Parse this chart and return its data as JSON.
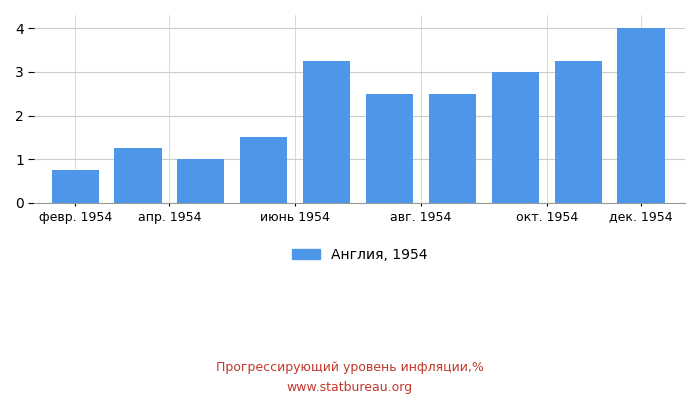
{
  "all_bars": [
    {
      "x": 1,
      "height": 0.75
    },
    {
      "x": 2,
      "height": 1.25
    },
    {
      "x": 3,
      "height": 1.0
    },
    {
      "x": 4,
      "height": 1.5
    },
    {
      "x": 5,
      "height": 3.25
    },
    {
      "x": 6,
      "height": 2.5
    },
    {
      "x": 7,
      "height": 2.5
    },
    {
      "x": 8,
      "height": 3.0
    },
    {
      "x": 9,
      "height": 3.25
    },
    {
      "x": 10,
      "height": 4.0
    }
  ],
  "tick_positions": [
    1,
    2.5,
    4.5,
    6.5,
    8.5,
    10
  ],
  "tick_labels": [
    "февр. 1954",
    "апр. 1954",
    "июнь 1954",
    "авг. 1954",
    "окт. 1954",
    "дек. 1954"
  ],
  "bar_color": "#4d96e8",
  "bar_width": 0.75,
  "ylim": [
    0,
    4.3
  ],
  "yticks": [
    0,
    1,
    2,
    3,
    4
  ],
  "xlim": [
    0.35,
    10.7
  ],
  "legend_label": "Англия, 1954",
  "footer_line1": "Прогрессирующий уровень инфляции,%",
  "footer_line2": "www.statbureau.org",
  "footer_color": "#c0392b",
  "background_color": "#ffffff",
  "grid_color": "#cccccc"
}
